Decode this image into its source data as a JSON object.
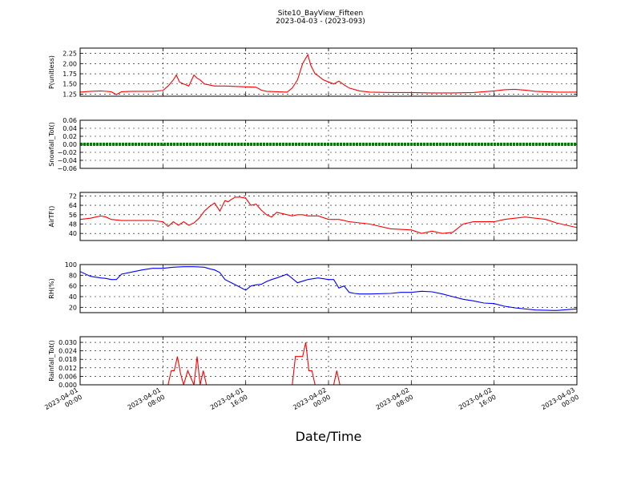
{
  "title_line1": "Site10_BayView_Fifteen",
  "title_line2": "2023-04-03 - (2023-093)",
  "xlabel": "Date/Time",
  "x_ticks": [
    {
      "label_date": "2023-04-01",
      "label_time": "00:00",
      "hours": 0
    },
    {
      "label_date": "2023-04-01",
      "label_time": "08:00",
      "hours": 8
    },
    {
      "label_date": "2023-04-01",
      "label_time": "16:00",
      "hours": 16
    },
    {
      "label_date": "2023-04-02",
      "label_time": "00:00",
      "hours": 24
    },
    {
      "label_date": "2023-04-02",
      "label_time": "08:00",
      "hours": 32
    },
    {
      "label_date": "2023-04-02",
      "label_time": "16:00",
      "hours": 40
    },
    {
      "label_date": "2023-04-03",
      "label_time": "00:00",
      "hours": 48
    }
  ],
  "chart_data": [
    {
      "type": "line",
      "ylabel": "P(unitless)",
      "color": "#ff0000",
      "ylim": [
        1.2,
        2.38
      ],
      "yticks": [
        "1.25",
        "1.50",
        "1.75",
        "2.00",
        "2.25"
      ],
      "x": [
        0,
        1,
        2,
        3,
        3.5,
        4,
        5,
        6,
        7,
        8,
        8.5,
        9,
        9.3,
        9.6,
        10,
        10.5,
        11,
        11.3,
        11.6,
        12,
        13,
        14,
        15,
        16,
        17,
        17.5,
        18,
        19,
        20,
        20.5,
        21,
        21.5,
        22,
        22.3,
        22.7,
        23,
        23.5,
        24,
        24.5,
        25,
        25.5,
        26,
        27,
        28,
        30,
        32,
        34,
        36,
        38,
        40,
        41,
        42,
        43,
        44,
        46,
        48
      ],
      "y": [
        1.3,
        1.32,
        1.33,
        1.31,
        1.24,
        1.31,
        1.32,
        1.32,
        1.32,
        1.34,
        1.45,
        1.6,
        1.72,
        1.55,
        1.5,
        1.45,
        1.72,
        1.64,
        1.6,
        1.5,
        1.45,
        1.45,
        1.44,
        1.43,
        1.42,
        1.35,
        1.32,
        1.31,
        1.3,
        1.4,
        1.6,
        2.0,
        2.22,
        1.95,
        1.75,
        1.7,
        1.6,
        1.55,
        1.5,
        1.57,
        1.48,
        1.4,
        1.33,
        1.3,
        1.29,
        1.29,
        1.28,
        1.28,
        1.29,
        1.33,
        1.36,
        1.37,
        1.35,
        1.32,
        1.3,
        1.3
      ]
    },
    {
      "type": "line",
      "ylabel": "Snowfall_Tot()",
      "color": "#008000",
      "ylim": [
        -0.06,
        0.06
      ],
      "yticks": [
        "−0.06",
        "−0.04",
        "−0.02",
        "0.00",
        "0.02",
        "0.04",
        "0.06"
      ],
      "x": [
        0,
        48
      ],
      "y": [
        0.0,
        0.0
      ]
    },
    {
      "type": "line",
      "ylabel": "AirTF()",
      "color": "#ff0000",
      "ylim": [
        34,
        75
      ],
      "yticks": [
        "40",
        "48",
        "56",
        "64",
        "72"
      ],
      "x": [
        0,
        1,
        2,
        2.5,
        3,
        4,
        5,
        6,
        7,
        8,
        8.5,
        9,
        9.5,
        10,
        10.5,
        11,
        11.5,
        12,
        12.5,
        13,
        13.5,
        14,
        14.3,
        14.6,
        15,
        15.5,
        16,
        16.5,
        17,
        17.5,
        18,
        18.5,
        19,
        19.5,
        20,
        20.5,
        21,
        21.5,
        22,
        23,
        24,
        25,
        25.5,
        26,
        27,
        28,
        30,
        32,
        33,
        34,
        35,
        36,
        37,
        38,
        40,
        41,
        42,
        43,
        44,
        45,
        46,
        48
      ],
      "y": [
        52,
        53,
        55,
        54,
        52,
        51,
        51,
        51,
        51,
        50,
        46,
        50,
        47,
        50,
        47,
        49,
        53,
        59,
        63,
        66,
        59,
        68,
        67,
        69,
        71,
        71,
        70,
        64,
        65,
        60,
        56,
        54,
        58,
        57,
        56,
        55,
        56,
        56,
        55,
        55,
        52,
        52,
        51,
        50,
        49,
        48,
        44,
        43,
        40,
        42,
        40,
        41,
        48,
        50,
        50,
        52,
        53,
        54,
        53,
        52,
        49,
        45
      ]
    },
    {
      "type": "line",
      "ylabel": "RH(%)",
      "color": "#0000ff",
      "ylim": [
        10,
        100
      ],
      "yticks": [
        "20",
        "40",
        "60",
        "80",
        "100"
      ],
      "x": [
        0,
        1,
        2,
        2.5,
        3,
        3.5,
        4,
        5,
        6,
        7,
        8,
        9,
        10,
        11,
        12,
        12.5,
        13,
        13.5,
        14,
        15,
        16,
        16.5,
        17,
        17.5,
        18,
        18.5,
        19,
        20,
        21,
        22,
        23,
        24,
        24.5,
        25,
        25.5,
        26,
        26.5,
        27,
        28,
        30,
        31,
        32,
        33,
        34,
        35,
        36,
        37,
        38,
        39,
        40,
        41,
        42,
        44,
        46,
        48
      ],
      "y": [
        87,
        78,
        75,
        74,
        72,
        72,
        82,
        86,
        90,
        93,
        93,
        95,
        96,
        96,
        95,
        92,
        90,
        85,
        72,
        62,
        52,
        60,
        62,
        63,
        68,
        72,
        75,
        82,
        66,
        72,
        75,
        72,
        72,
        56,
        60,
        48,
        46,
        45,
        45,
        46,
        48,
        48,
        50,
        49,
        45,
        40,
        35,
        32,
        28,
        27,
        22,
        19,
        15,
        14,
        17
      ]
    },
    {
      "type": "line",
      "ylabel": "Rainfall_Tot()",
      "color": "#ff0000",
      "ylim": [
        0,
        0.034
      ],
      "yticks": [
        "0.000",
        "0.006",
        "0.012",
        "0.018",
        "0.024",
        "0.030"
      ],
      "x": [
        0,
        8.5,
        8.8,
        9.1,
        9.4,
        9.7,
        10.0,
        10.4,
        11.0,
        11.3,
        11.6,
        11.9,
        12.2,
        20.5,
        20.8,
        21.2,
        21.5,
        21.8,
        22.1,
        22.4,
        22.7,
        24.5,
        24.8,
        25.1,
        48
      ],
      "y": [
        0,
        0,
        0.01,
        0.01,
        0.02,
        0.008,
        0,
        0.01,
        0,
        0.02,
        0,
        0.01,
        0,
        0,
        0.02,
        0.02,
        0.02,
        0.03,
        0.01,
        0.01,
        0,
        0,
        0.01,
        0,
        0
      ]
    }
  ]
}
